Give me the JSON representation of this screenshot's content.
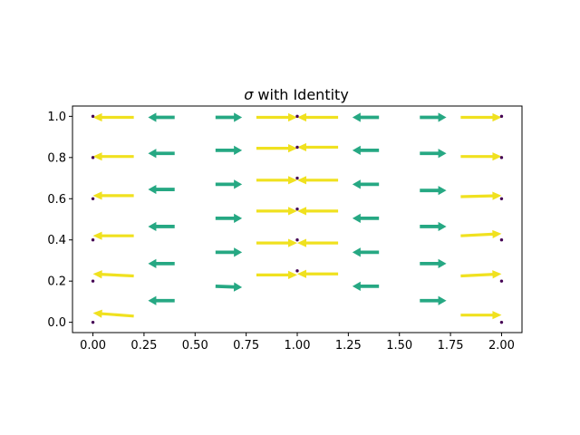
{
  "chart_data": {
    "type": "quiver",
    "title_symbol": "σ",
    "title_rest": " with Identity",
    "xlim": [
      -0.1,
      2.1
    ],
    "ylim": [
      -0.05,
      1.05
    ],
    "xticks": [
      "0.00",
      "0.25",
      "0.50",
      "0.75",
      "1.00",
      "1.25",
      "1.50",
      "1.75",
      "2.00"
    ],
    "yticks": [
      "0.0",
      "0.2",
      "0.4",
      "0.6",
      "0.8",
      "1.0"
    ],
    "colors": {
      "long": "#f0e11f",
      "short": "#26a883",
      "point": "#440154",
      "axis": "#000000"
    },
    "points": [
      {
        "x": 0,
        "y": 0.0
      },
      {
        "x": 0,
        "y": 0.2
      },
      {
        "x": 0,
        "y": 0.4
      },
      {
        "x": 0,
        "y": 0.6
      },
      {
        "x": 0,
        "y": 0.8
      },
      {
        "x": 0,
        "y": 1.0
      },
      {
        "x": 1,
        "y": 0.25
      },
      {
        "x": 1,
        "y": 0.4
      },
      {
        "x": 1,
        "y": 0.55
      },
      {
        "x": 1,
        "y": 0.7
      },
      {
        "x": 1,
        "y": 0.85
      },
      {
        "x": 1,
        "y": 1.0
      },
      {
        "x": 2,
        "y": 0.0
      },
      {
        "x": 2,
        "y": 0.2
      },
      {
        "x": 2,
        "y": 0.4
      },
      {
        "x": 2,
        "y": 0.6
      },
      {
        "x": 2,
        "y": 0.8
      },
      {
        "x": 2,
        "y": 1.0
      }
    ],
    "arrows": [
      {
        "x": 0.2,
        "y": 0.03,
        "u": -0.2,
        "v": 0.015,
        "group": "long"
      },
      {
        "x": 0.2,
        "y": 0.225,
        "u": -0.2,
        "v": 0.01,
        "group": "long"
      },
      {
        "x": 0.2,
        "y": 0.42,
        "u": -0.2,
        "v": 0.0,
        "group": "long"
      },
      {
        "x": 0.2,
        "y": 0.615,
        "u": -0.2,
        "v": 0.0,
        "group": "long"
      },
      {
        "x": 0.2,
        "y": 0.805,
        "u": -0.2,
        "v": 0.0,
        "group": "long"
      },
      {
        "x": 0.2,
        "y": 0.995,
        "u": -0.2,
        "v": 0.0,
        "group": "long"
      },
      {
        "x": 0.8,
        "y": 0.23,
        "u": 0.2,
        "v": 0.0,
        "group": "long"
      },
      {
        "x": 0.8,
        "y": 0.385,
        "u": 0.2,
        "v": 0.0,
        "group": "long"
      },
      {
        "x": 0.8,
        "y": 0.54,
        "u": 0.2,
        "v": 0.0,
        "group": "long"
      },
      {
        "x": 0.8,
        "y": 0.69,
        "u": 0.2,
        "v": 0.0,
        "group": "long"
      },
      {
        "x": 0.8,
        "y": 0.845,
        "u": 0.2,
        "v": 0.0,
        "group": "long"
      },
      {
        "x": 0.8,
        "y": 0.995,
        "u": 0.2,
        "v": 0.0,
        "group": "long"
      },
      {
        "x": 1.2,
        "y": 0.235,
        "u": -0.2,
        "v": 0.0,
        "group": "long"
      },
      {
        "x": 1.2,
        "y": 0.385,
        "u": -0.2,
        "v": 0.0,
        "group": "long"
      },
      {
        "x": 1.2,
        "y": 0.54,
        "u": -0.2,
        "v": 0.0,
        "group": "long"
      },
      {
        "x": 1.2,
        "y": 0.69,
        "u": -0.2,
        "v": 0.0,
        "group": "long"
      },
      {
        "x": 1.2,
        "y": 0.85,
        "u": -0.2,
        "v": 0.0,
        "group": "long"
      },
      {
        "x": 1.2,
        "y": 0.995,
        "u": -0.2,
        "v": 0.0,
        "group": "long"
      },
      {
        "x": 1.8,
        "y": 0.035,
        "u": 0.2,
        "v": 0.0,
        "group": "long"
      },
      {
        "x": 1.8,
        "y": 0.225,
        "u": 0.2,
        "v": 0.01,
        "group": "long"
      },
      {
        "x": 1.8,
        "y": 0.42,
        "u": 0.2,
        "v": 0.01,
        "group": "long"
      },
      {
        "x": 1.8,
        "y": 0.61,
        "u": 0.2,
        "v": 0.005,
        "group": "long"
      },
      {
        "x": 1.8,
        "y": 0.805,
        "u": 0.2,
        "v": 0.0,
        "group": "long"
      },
      {
        "x": 1.8,
        "y": 0.995,
        "u": 0.2,
        "v": 0.0,
        "group": "long"
      },
      {
        "x": 0.4,
        "y": 0.105,
        "u": -0.13,
        "v": 0.0,
        "group": "short"
      },
      {
        "x": 0.4,
        "y": 0.285,
        "u": -0.13,
        "v": 0.0,
        "group": "short"
      },
      {
        "x": 0.4,
        "y": 0.465,
        "u": -0.13,
        "v": 0.0,
        "group": "short"
      },
      {
        "x": 0.4,
        "y": 0.645,
        "u": -0.13,
        "v": 0.0,
        "group": "short"
      },
      {
        "x": 0.4,
        "y": 0.82,
        "u": -0.13,
        "v": 0.0,
        "group": "short"
      },
      {
        "x": 0.4,
        "y": 0.995,
        "u": -0.13,
        "v": 0.0,
        "group": "short"
      },
      {
        "x": 0.6,
        "y": 0.175,
        "u": 0.13,
        "v": -0.005,
        "group": "short"
      },
      {
        "x": 0.6,
        "y": 0.34,
        "u": 0.13,
        "v": 0.0,
        "group": "short"
      },
      {
        "x": 0.6,
        "y": 0.505,
        "u": 0.13,
        "v": 0.0,
        "group": "short"
      },
      {
        "x": 0.6,
        "y": 0.67,
        "u": 0.13,
        "v": 0.0,
        "group": "short"
      },
      {
        "x": 0.6,
        "y": 0.835,
        "u": 0.13,
        "v": 0.0,
        "group": "short"
      },
      {
        "x": 0.6,
        "y": 0.995,
        "u": 0.13,
        "v": 0.0,
        "group": "short"
      },
      {
        "x": 1.4,
        "y": 0.175,
        "u": -0.13,
        "v": 0.0,
        "group": "short"
      },
      {
        "x": 1.4,
        "y": 0.34,
        "u": -0.13,
        "v": 0.0,
        "group": "short"
      },
      {
        "x": 1.4,
        "y": 0.505,
        "u": -0.13,
        "v": 0.0,
        "group": "short"
      },
      {
        "x": 1.4,
        "y": 0.67,
        "u": -0.13,
        "v": 0.0,
        "group": "short"
      },
      {
        "x": 1.4,
        "y": 0.835,
        "u": -0.13,
        "v": 0.0,
        "group": "short"
      },
      {
        "x": 1.4,
        "y": 0.995,
        "u": -0.13,
        "v": 0.0,
        "group": "short"
      },
      {
        "x": 1.6,
        "y": 0.105,
        "u": 0.13,
        "v": 0.0,
        "group": "short"
      },
      {
        "x": 1.6,
        "y": 0.285,
        "u": 0.13,
        "v": 0.0,
        "group": "short"
      },
      {
        "x": 1.6,
        "y": 0.465,
        "u": 0.13,
        "v": 0.0,
        "group": "short"
      },
      {
        "x": 1.6,
        "y": 0.64,
        "u": 0.13,
        "v": 0.0,
        "group": "short"
      },
      {
        "x": 1.6,
        "y": 0.82,
        "u": 0.13,
        "v": 0.0,
        "group": "short"
      },
      {
        "x": 1.6,
        "y": 0.995,
        "u": 0.13,
        "v": 0.0,
        "group": "short"
      }
    ]
  }
}
